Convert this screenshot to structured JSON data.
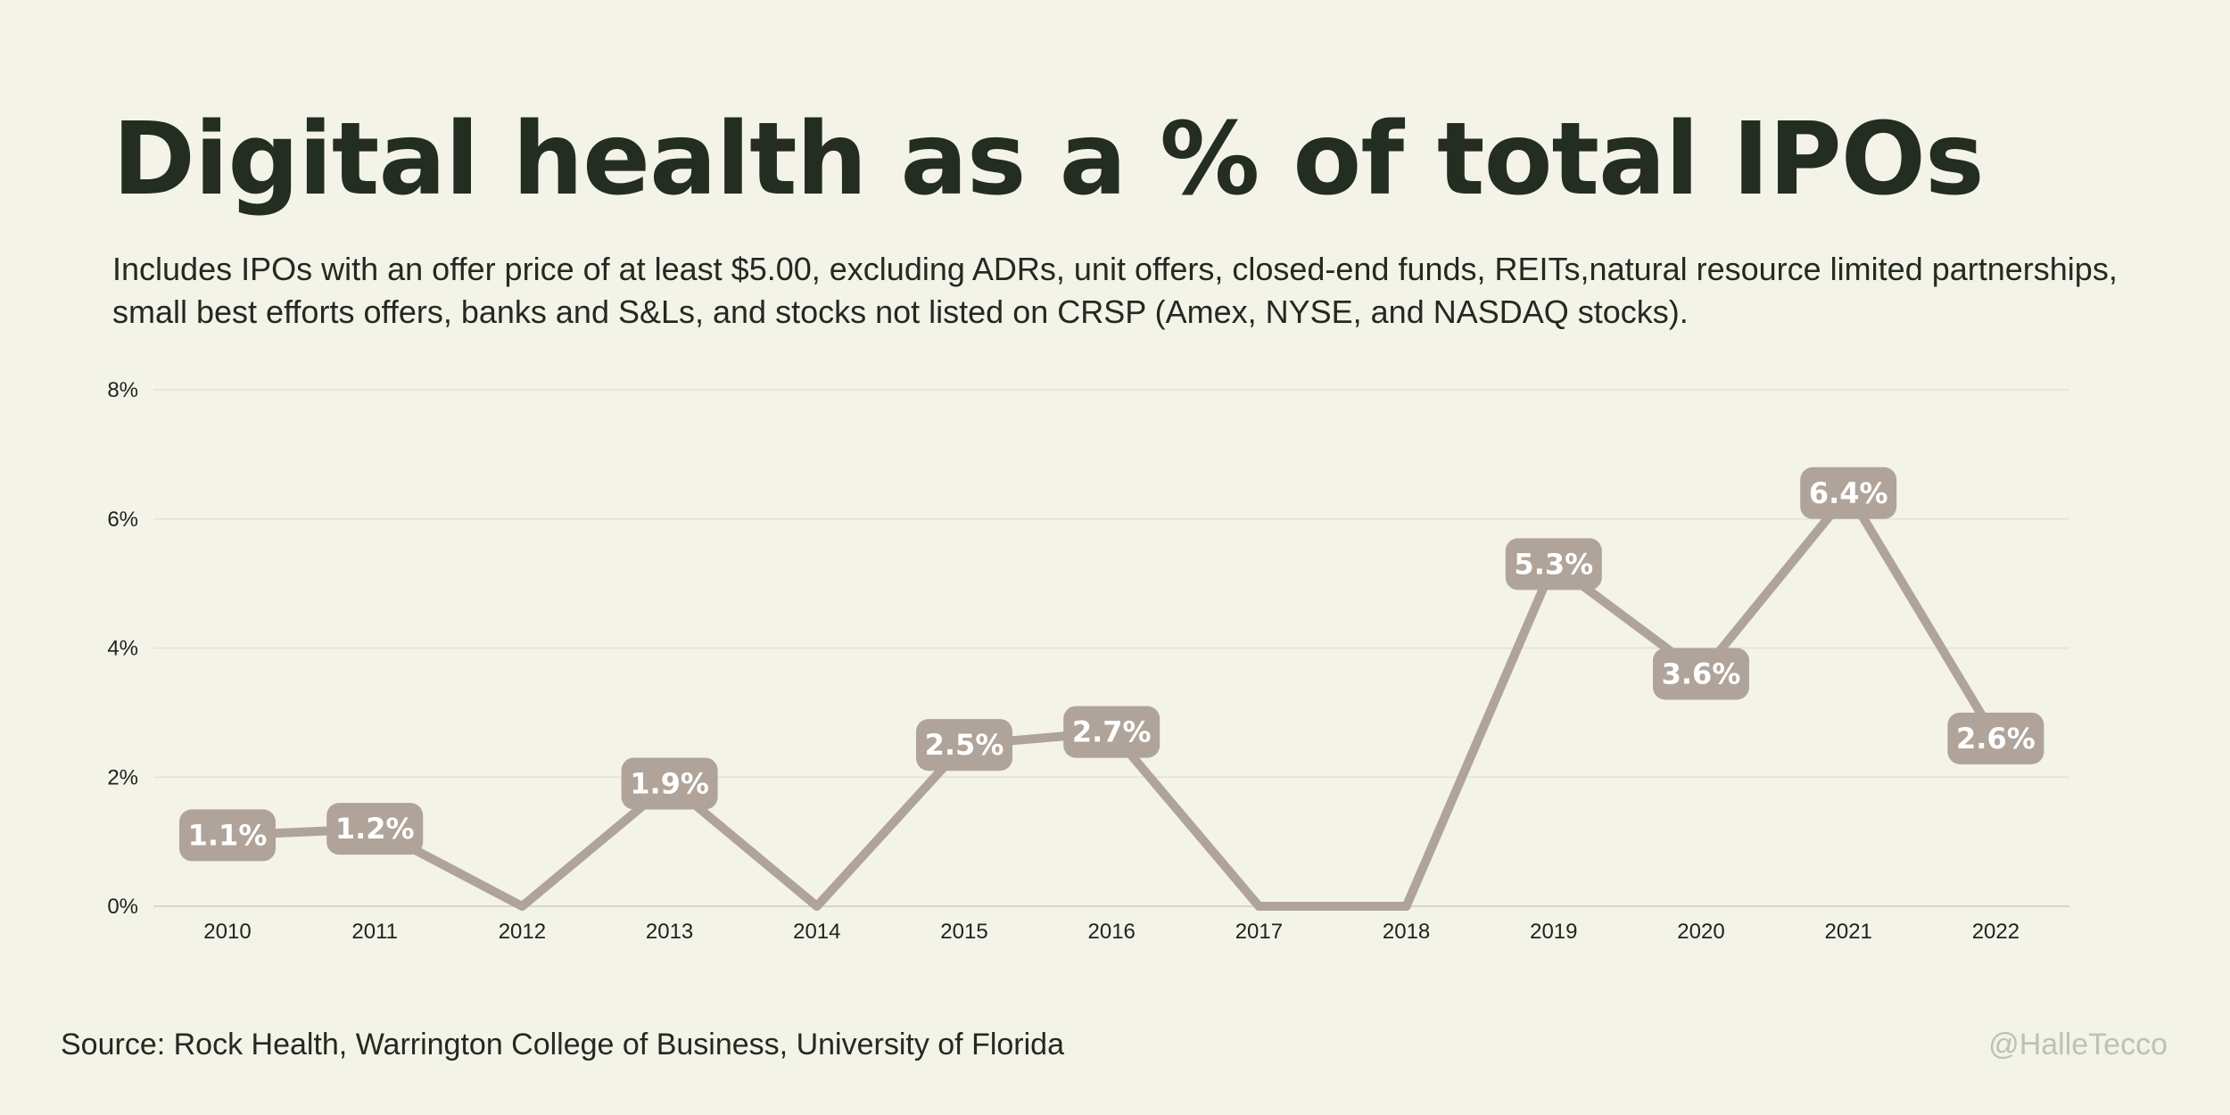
{
  "header": {
    "title": "Digital health as a % of total IPOs",
    "subtitle": "Includes IPOs with an offer price of at least $5.00, excluding ADRs, unit offers, closed-end funds, REITs,natural resource limited partnerships, small best efforts offers, banks and S&Ls, and stocks not listed on CRSP (Amex, NYSE, and NASDAQ stocks)."
  },
  "footer": {
    "source": "Source: Rock Health, Warrington College of Business, University of Florida",
    "handle": "@HalleTecco"
  },
  "colors": {
    "background": "#f4f3e8",
    "line": "#b0a49a",
    "label_bg": "#b0a49a",
    "gridline": "#e3e2d6",
    "title": "#232d22",
    "handle": "#b9c4b3"
  },
  "chart_data": {
    "type": "line",
    "title": "Digital health as a % of total IPOs",
    "xlabel": "",
    "ylabel": "",
    "categories": [
      "2010",
      "2011",
      "2012",
      "2013",
      "2014",
      "2015",
      "2016",
      "2017",
      "2018",
      "2019",
      "2020",
      "2021",
      "2022"
    ],
    "values": [
      1.1,
      1.2,
      0,
      1.9,
      0,
      2.5,
      2.7,
      0,
      0,
      5.3,
      3.6,
      6.4,
      2.6
    ],
    "data_labels": [
      "1.1%",
      "1.2%",
      null,
      "1.9%",
      null,
      "2.5%",
      "2.7%",
      null,
      null,
      "5.3%",
      "3.6%",
      "6.4%",
      "2.6%"
    ],
    "ylim": [
      0,
      8
    ],
    "yticks": [
      0,
      2,
      4,
      6,
      8
    ],
    "ytick_labels": [
      "0%",
      "2%",
      "4%",
      "6%",
      "8%"
    ],
    "grid": true,
    "legend": "none"
  }
}
